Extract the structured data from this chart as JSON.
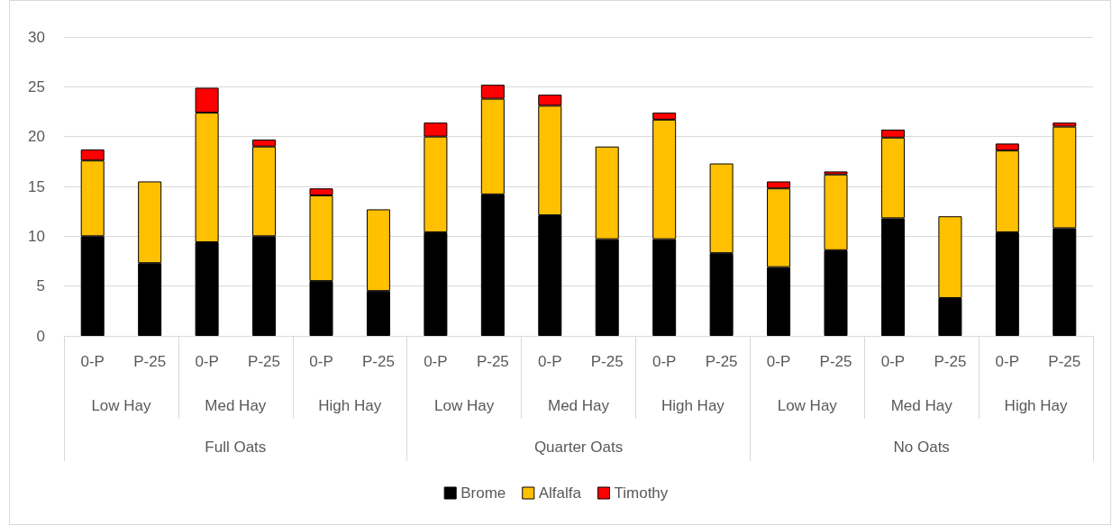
{
  "chart_data": {
    "type": "bar",
    "stacked": true,
    "categories": [
      "0-P",
      "P-25",
      "0-P",
      "P-25",
      "0-P",
      "P-25",
      "0-P",
      "P-25",
      "0-P",
      "P-25",
      "0-P",
      "P-25",
      "0-P",
      "P-25",
      "0-P",
      "P-25",
      "0-P",
      "P-25"
    ],
    "annotations": [
      "Low Hay",
      "Med Hay",
      "High Hay",
      "Low Hay",
      "Med Hay",
      "High Hay",
      "Low Hay",
      "Med Hay",
      "High Hay",
      "Full Oats",
      "Quarter Oats",
      "No Oats"
    ],
    "series": [
      {
        "name": "Brome",
        "color": "#000000",
        "values": [
          10.0,
          7.3,
          9.4,
          10.0,
          5.5,
          4.5,
          10.4,
          14.2,
          12.1,
          9.7,
          9.7,
          8.3,
          6.9,
          8.6,
          11.8,
          3.8,
          10.4,
          10.8
        ]
      },
      {
        "name": "Alfalfa",
        "color": "#ffc000",
        "values": [
          7.6,
          8.2,
          13.0,
          9.0,
          8.6,
          8.2,
          9.6,
          9.6,
          11.0,
          9.3,
          12.0,
          9.0,
          7.9,
          7.6,
          8.1,
          8.2,
          8.2,
          10.2
        ]
      },
      {
        "name": "Timothy",
        "color": "#ff0000",
        "values": [
          1.1,
          null,
          2.5,
          0.7,
          0.7,
          null,
          1.4,
          1.4,
          1.1,
          null,
          0.7,
          null,
          0.7,
          0.3,
          0.8,
          null,
          0.7,
          0.4
        ]
      }
    ],
    "ylim": [
      0,
      30
    ],
    "yticks": [
      0,
      5,
      10,
      15,
      20,
      25,
      30
    ],
    "grid": "y",
    "legend": "bottom"
  }
}
